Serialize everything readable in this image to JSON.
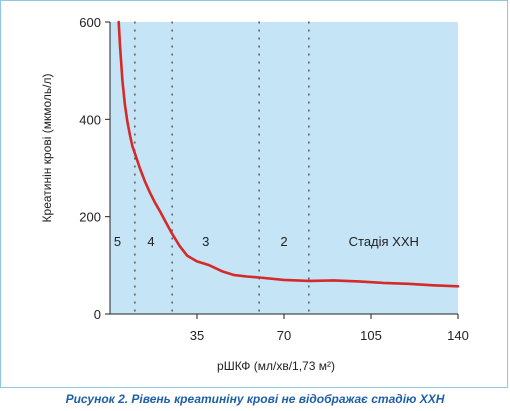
{
  "chart_data": {
    "type": "line",
    "xlabel": "рШКФ (мл/хв/1,73 м²)",
    "ylabel": "Креатинін крові (мкмоль/л)",
    "xlim": [
      0,
      140
    ],
    "ylim": [
      0,
      600
    ],
    "xticks": [
      35,
      70,
      105,
      140
    ],
    "yticks": [
      0,
      200,
      400,
      600
    ],
    "grid": false,
    "plot_background": "#c5e4f5",
    "line_color": "#d42a2a",
    "stage_boundaries": [
      10,
      25,
      60,
      80
    ],
    "stage_labels": [
      {
        "label": "5",
        "x": 3
      },
      {
        "label": "4",
        "x": 16.5
      },
      {
        "label": "3",
        "x": 38.5
      },
      {
        "label": "2",
        "x": 70
      },
      {
        "label": "Стадія ХХН",
        "x": 96
      }
    ],
    "stage_label_y": 150,
    "series": [
      {
        "x": [
          3.5,
          4,
          5,
          6,
          7,
          8,
          9,
          10,
          12,
          14,
          16,
          18,
          20,
          22,
          25,
          28,
          31,
          35,
          40,
          45,
          50,
          55,
          60,
          70,
          80,
          90,
          100,
          110,
          120,
          130,
          140
        ],
        "values": [
          600,
          555,
          480,
          430,
          395,
          368,
          345,
          330,
          300,
          273,
          250,
          230,
          212,
          193,
          165,
          140,
          120,
          108,
          100,
          88,
          80,
          77,
          75,
          70,
          68,
          69,
          67,
          64,
          62,
          59,
          57
        ]
      }
    ]
  },
  "caption": "Рисунок 2. Рівень креатиніну крові не відображає стадію ХХН"
}
